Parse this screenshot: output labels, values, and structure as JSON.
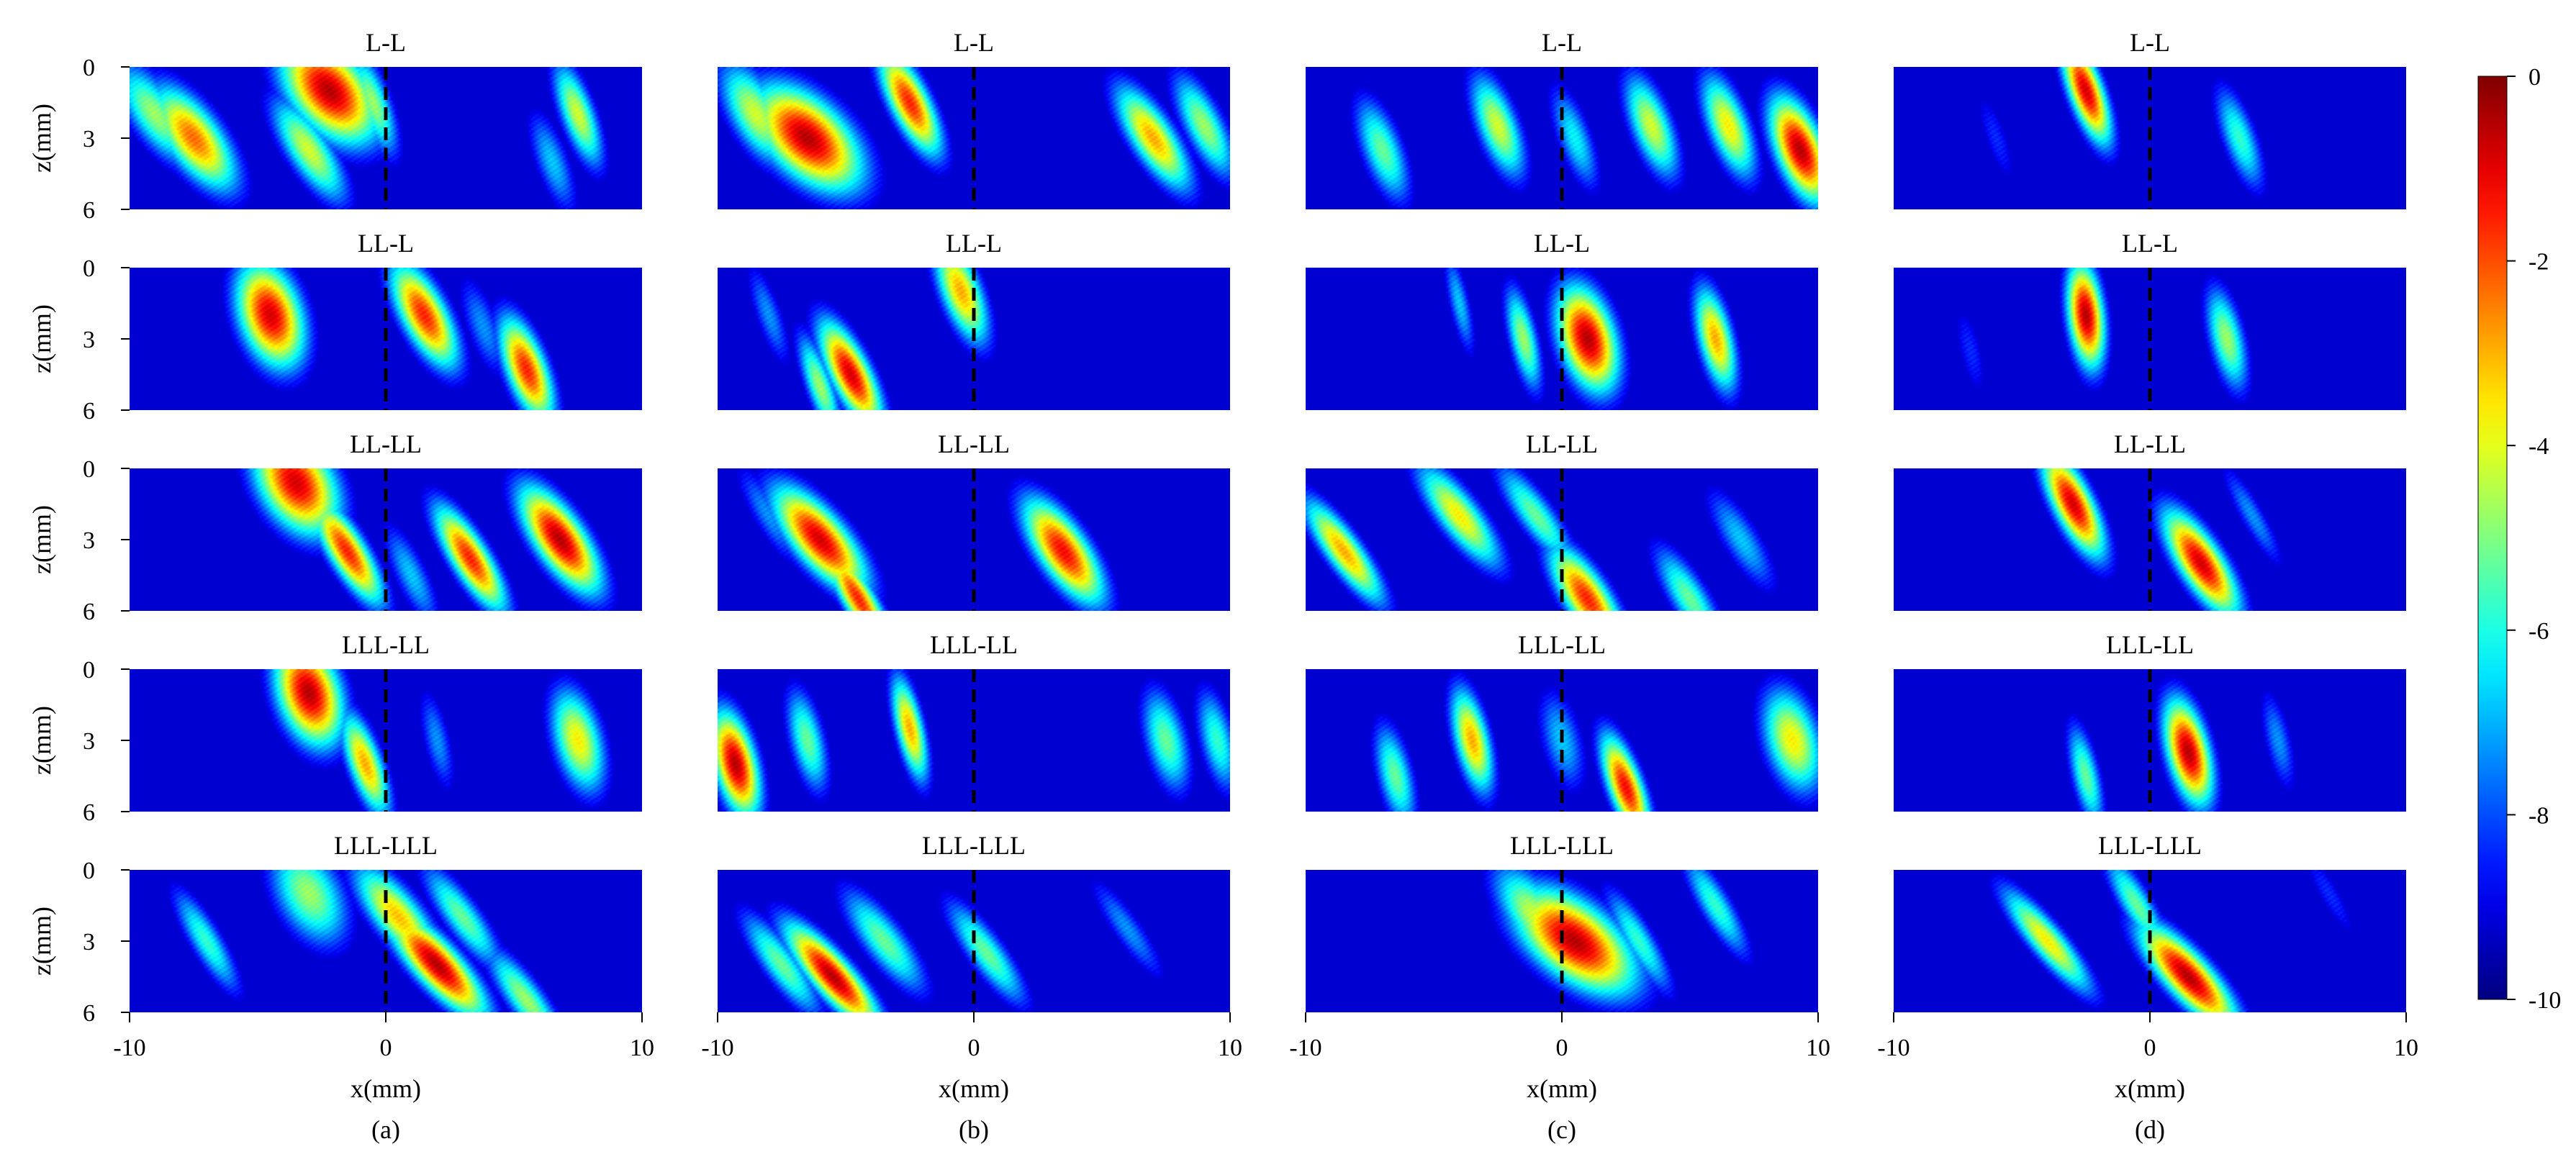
{
  "chart_data": {
    "type": "heatmap",
    "colormap": "jet",
    "colorbar": {
      "min": -10,
      "max": 0,
      "ticks": [
        "0",
        "-2",
        "-4",
        "-6",
        "-8",
        "-10"
      ]
    },
    "axes": {
      "xlabel": "x(mm)",
      "ylabel": "z(mm)",
      "x_ticks": [
        "-10",
        "0",
        "10"
      ],
      "z_ticks": [
        "0",
        "3",
        "6"
      ],
      "xlim": [
        -10,
        10
      ],
      "zlim": [
        0,
        6
      ],
      "reference_line_x": 0
    },
    "row_titles": [
      "L-L",
      "LL-L",
      "LL-LL",
      "LLL-LL",
      "LLL-LLL"
    ],
    "column_captions": [
      "(a)",
      "(b)",
      "(c)",
      "(d)"
    ],
    "images": [
      [
        [
          {
            "x": -7.5,
            "z": 3,
            "a": 0.78,
            "w": 0.9,
            "tilt": 0.5
          },
          {
            "x": -9,
            "z": 2,
            "a": 0.55,
            "w": 0.8,
            "tilt": 0.5
          },
          {
            "x": -2.2,
            "z": 1,
            "a": 0.95,
            "w": 1.2,
            "tilt": 0.4
          },
          {
            "x": -3,
            "z": 3.5,
            "a": 0.6,
            "w": 0.7,
            "tilt": 0.5
          },
          {
            "x": -0.5,
            "z": 1.5,
            "a": 0.55,
            "w": 0.5,
            "tilt": 0.3
          },
          {
            "x": 7.5,
            "z": 2,
            "a": 0.6,
            "w": 0.5,
            "tilt": 0.3
          },
          {
            "x": 6.5,
            "z": 4,
            "a": 0.35,
            "w": 0.5,
            "tilt": 0.3
          }
        ],
        [
          {
            "x": -4.5,
            "z": 2,
            "a": 0.92,
            "w": 0.9,
            "tilt": 0.2
          },
          {
            "x": 1.5,
            "z": 2,
            "a": 0.85,
            "w": 0.7,
            "tilt": 0.4
          },
          {
            "x": 5.5,
            "z": 4.3,
            "a": 0.85,
            "w": 0.6,
            "tilt": 0.3
          },
          {
            "x": 3.8,
            "z": 2.5,
            "a": 0.3,
            "w": 0.5,
            "tilt": 0.3
          }
        ],
        [
          {
            "x": -3.5,
            "z": 0.6,
            "a": 0.92,
            "w": 1.1,
            "tilt": 0.3
          },
          {
            "x": -1.5,
            "z": 3.5,
            "a": 0.85,
            "w": 0.6,
            "tilt": 0.5
          },
          {
            "x": 3.3,
            "z": 3.8,
            "a": 0.85,
            "w": 0.6,
            "tilt": 0.5
          },
          {
            "x": 6.8,
            "z": 3,
            "a": 0.95,
            "w": 0.8,
            "tilt": 0.5
          },
          {
            "x": 1,
            "z": 4.5,
            "a": 0.35,
            "w": 0.5,
            "tilt": 0.4
          }
        ],
        [
          {
            "x": -3,
            "z": 1,
            "a": 0.95,
            "w": 0.9,
            "tilt": 0.2
          },
          {
            "x": -0.8,
            "z": 4,
            "a": 0.72,
            "w": 0.5,
            "tilt": 0.3
          },
          {
            "x": 7.5,
            "z": 3,
            "a": 0.65,
            "w": 0.7,
            "tilt": 0.2
          },
          {
            "x": 2,
            "z": 3,
            "a": 0.3,
            "w": 0.4,
            "tilt": 0.2
          }
        ],
        [
          {
            "x": 2,
            "z": 4,
            "a": 0.95,
            "w": 0.8,
            "tilt": 0.7
          },
          {
            "x": 0.5,
            "z": 2,
            "a": 0.7,
            "w": 0.8,
            "tilt": 0.6
          },
          {
            "x": -3,
            "z": 1,
            "a": 0.55,
            "w": 1,
            "tilt": 0.3
          },
          {
            "x": -7,
            "z": 3,
            "a": 0.45,
            "w": 0.5,
            "tilt": 0.5
          },
          {
            "x": 5.5,
            "z": 5.5,
            "a": 0.55,
            "w": 0.6,
            "tilt": 0.6
          },
          {
            "x": 3,
            "z": 2,
            "a": 0.5,
            "w": 0.6,
            "tilt": 0.6
          }
        ]
      ],
      [
        [
          {
            "x": -6.5,
            "z": 3,
            "a": 0.95,
            "w": 1.3,
            "tilt": 0.5
          },
          {
            "x": -2.5,
            "z": 1.5,
            "a": 0.85,
            "w": 0.6,
            "tilt": 0.4
          },
          {
            "x": -8.5,
            "z": 2,
            "a": 0.6,
            "w": 0.8,
            "tilt": 0.4
          },
          {
            "x": 7,
            "z": 3,
            "a": 0.72,
            "w": 0.7,
            "tilt": 0.5
          },
          {
            "x": 9,
            "z": 2.5,
            "a": 0.55,
            "w": 0.6,
            "tilt": 0.4
          }
        ],
        [
          {
            "x": -4.8,
            "z": 4.5,
            "a": 0.92,
            "w": 0.6,
            "tilt": 0.4
          },
          {
            "x": -0.5,
            "z": 1,
            "a": 0.72,
            "w": 0.6,
            "tilt": 0.3
          },
          {
            "x": -6,
            "z": 5,
            "a": 0.55,
            "w": 0.4,
            "tilt": 0.3
          },
          {
            "x": -8,
            "z": 2,
            "a": 0.3,
            "w": 0.4,
            "tilt": 0.3
          }
        ],
        [
          {
            "x": -6,
            "z": 3,
            "a": 0.92,
            "w": 0.9,
            "tilt": 0.6
          },
          {
            "x": 3.5,
            "z": 3.5,
            "a": 0.88,
            "w": 0.8,
            "tilt": 0.5
          },
          {
            "x": -4.5,
            "z": 5.5,
            "a": 0.85,
            "w": 0.5,
            "tilt": 0.5
          },
          {
            "x": -8,
            "z": 2,
            "a": 0.3,
            "w": 0.5,
            "tilt": 0.5
          }
        ],
        [
          {
            "x": -9.3,
            "z": 4,
            "a": 0.95,
            "w": 0.6,
            "tilt": 0.2
          },
          {
            "x": -2.5,
            "z": 2.5,
            "a": 0.72,
            "w": 0.4,
            "tilt": 0.2
          },
          {
            "x": -6.5,
            "z": 3,
            "a": 0.5,
            "w": 0.5,
            "tilt": 0.2
          },
          {
            "x": 7.5,
            "z": 3,
            "a": 0.5,
            "w": 0.6,
            "tilt": 0.2
          },
          {
            "x": 9.5,
            "z": 3,
            "a": 0.45,
            "w": 0.5,
            "tilt": 0.2
          }
        ],
        [
          {
            "x": -5.5,
            "z": 4.5,
            "a": 0.95,
            "w": 0.7,
            "tilt": 0.7
          },
          {
            "x": -7.5,
            "z": 4,
            "a": 0.5,
            "w": 0.6,
            "tilt": 0.6
          },
          {
            "x": -3.5,
            "z": 3,
            "a": 0.5,
            "w": 0.7,
            "tilt": 0.6
          },
          {
            "x": 0.5,
            "z": 3.5,
            "a": 0.5,
            "w": 0.6,
            "tilt": 0.6
          },
          {
            "x": 6,
            "z": 2.5,
            "a": 0.3,
            "w": 0.5,
            "tilt": 0.6
          }
        ]
      ],
      [
        [
          {
            "x": 9.3,
            "z": 3.5,
            "a": 0.95,
            "w": 0.7,
            "tilt": 0.3
          },
          {
            "x": 6.5,
            "z": 2.5,
            "a": 0.65,
            "w": 0.6,
            "tilt": 0.3
          },
          {
            "x": 3.5,
            "z": 2.5,
            "a": 0.6,
            "w": 0.6,
            "tilt": 0.3
          },
          {
            "x": -2.5,
            "z": 2.5,
            "a": 0.6,
            "w": 0.6,
            "tilt": 0.3
          },
          {
            "x": -7,
            "z": 3.5,
            "a": 0.5,
            "w": 0.6,
            "tilt": 0.3
          },
          {
            "x": 0.5,
            "z": 3,
            "a": 0.4,
            "w": 0.5,
            "tilt": 0.3
          }
        ],
        [
          {
            "x": 1,
            "z": 3,
            "a": 0.95,
            "w": 0.8,
            "tilt": 0.2
          },
          {
            "x": 6,
            "z": 3,
            "a": 0.72,
            "w": 0.5,
            "tilt": 0.2
          },
          {
            "x": -1.5,
            "z": 3,
            "a": 0.55,
            "w": 0.4,
            "tilt": 0.2
          },
          {
            "x": -4,
            "z": 1.5,
            "a": 0.35,
            "w": 0.3,
            "tilt": 0.2
          }
        ],
        [
          {
            "x": -8.5,
            "z": 3.5,
            "a": 0.72,
            "w": 0.6,
            "tilt": 0.6
          },
          {
            "x": -4,
            "z": 2,
            "a": 0.65,
            "w": 0.7,
            "tilt": 0.6
          },
          {
            "x": 1,
            "z": 5.5,
            "a": 0.85,
            "w": 0.7,
            "tilt": 0.5
          },
          {
            "x": -1,
            "z": 2,
            "a": 0.5,
            "w": 0.6,
            "tilt": 0.6
          },
          {
            "x": 5,
            "z": 5.5,
            "a": 0.5,
            "w": 0.6,
            "tilt": 0.5
          },
          {
            "x": 7,
            "z": 3,
            "a": 0.35,
            "w": 0.6,
            "tilt": 0.5
          }
        ],
        [
          {
            "x": -3.5,
            "z": 3,
            "a": 0.72,
            "w": 0.5,
            "tilt": 0.2
          },
          {
            "x": 2.5,
            "z": 5,
            "a": 0.88,
            "w": 0.5,
            "tilt": 0.3
          },
          {
            "x": -6.5,
            "z": 4.5,
            "a": 0.5,
            "w": 0.5,
            "tilt": 0.2
          },
          {
            "x": 9,
            "z": 3,
            "a": 0.65,
            "w": 0.8,
            "tilt": 0.2
          },
          {
            "x": 0,
            "z": 3,
            "a": 0.35,
            "w": 0.6,
            "tilt": 0.2
          }
        ],
        [
          {
            "x": 0.5,
            "z": 3,
            "a": 0.95,
            "w": 1.4,
            "tilt": 0.6
          },
          {
            "x": 3,
            "z": 3,
            "a": 0.45,
            "w": 0.5,
            "tilt": 0.5
          },
          {
            "x": 6,
            "z": 1.5,
            "a": 0.45,
            "w": 0.5,
            "tilt": 0.5
          },
          {
            "x": -1,
            "z": 2,
            "a": 0.6,
            "w": 0.9,
            "tilt": 0.5
          }
        ]
      ],
      [
        [
          {
            "x": -2.5,
            "z": 1,
            "a": 0.92,
            "w": 0.5,
            "tilt": 0.3
          },
          {
            "x": 3.5,
            "z": 3,
            "a": 0.45,
            "w": 0.5,
            "tilt": 0.3
          },
          {
            "x": -6,
            "z": 3,
            "a": 0.2,
            "w": 0.4,
            "tilt": 0.3
          }
        ],
        [
          {
            "x": -2.5,
            "z": 2,
            "a": 0.95,
            "w": 0.5,
            "tilt": 0.1
          },
          {
            "x": 3,
            "z": 3,
            "a": 0.55,
            "w": 0.5,
            "tilt": 0.2
          },
          {
            "x": -7,
            "z": 3.5,
            "a": 0.2,
            "w": 0.4,
            "tilt": 0.2
          }
        ],
        [
          {
            "x": -3,
            "z": 1.5,
            "a": 0.92,
            "w": 0.6,
            "tilt": 0.4
          },
          {
            "x": 2,
            "z": 4,
            "a": 0.92,
            "w": 0.7,
            "tilt": 0.5
          },
          {
            "x": 4,
            "z": 2,
            "a": 0.3,
            "w": 0.4,
            "tilt": 0.5
          }
        ],
        [
          {
            "x": 1.5,
            "z": 3.5,
            "a": 0.95,
            "w": 0.6,
            "tilt": 0.2
          },
          {
            "x": -2.5,
            "z": 4.5,
            "a": 0.5,
            "w": 0.4,
            "tilt": 0.2
          },
          {
            "x": 5,
            "z": 3,
            "a": 0.3,
            "w": 0.4,
            "tilt": 0.2
          }
        ],
        [
          {
            "x": 1.5,
            "z": 4.5,
            "a": 0.95,
            "w": 0.8,
            "tilt": 0.7
          },
          {
            "x": -4,
            "z": 3,
            "a": 0.65,
            "w": 0.6,
            "tilt": 0.7
          },
          {
            "x": -0.5,
            "z": 1.5,
            "a": 0.5,
            "w": 0.5,
            "tilt": 0.5
          },
          {
            "x": 7,
            "z": 1,
            "a": 0.2,
            "w": 0.4,
            "tilt": 0.5
          }
        ]
      ]
    ]
  }
}
